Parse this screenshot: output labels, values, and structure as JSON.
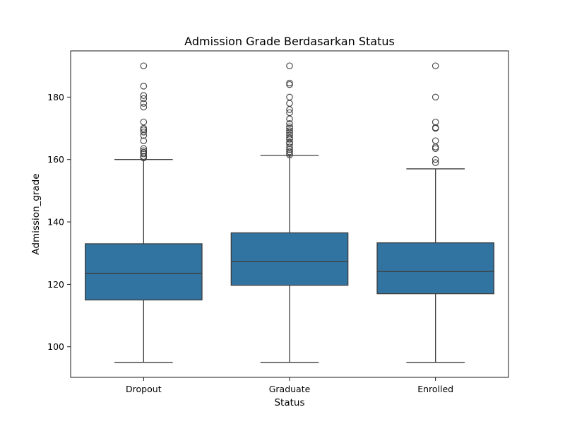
{
  "chart_data": {
    "type": "box",
    "title": "Admission Grade Berdasarkan Status",
    "xlabel": "Status",
    "ylabel": "Admission_grade",
    "categories": [
      "Dropout",
      "Graduate",
      "Enrolled"
    ],
    "ylim": [
      90.2,
      194.8
    ],
    "yticks": [
      100,
      120,
      140,
      160,
      180
    ],
    "grid": false,
    "box_color": "#3274a1",
    "line_color": "#3d3d3d",
    "boxes": [
      {
        "category": "Dropout",
        "whisker_low": 95.0,
        "q1": 115.0,
        "median": 123.5,
        "q3": 133.0,
        "whisker_high": 160.0,
        "outliers": [
          160.5,
          161.0,
          161.8,
          162.3,
          162.8,
          163.5,
          166.0,
          167.7,
          168.8,
          169.5,
          170.0,
          172.0,
          176.8,
          178.0,
          179.5,
          180.5,
          183.5,
          190.0
        ]
      },
      {
        "category": "Graduate",
        "whisker_low": 95.0,
        "q1": 119.7,
        "median": 127.3,
        "q3": 136.5,
        "whisker_high": 161.3,
        "outliers": [
          161.5,
          162.0,
          162.5,
          163.2,
          164.0,
          165.0,
          165.5,
          166.5,
          167.0,
          167.8,
          168.5,
          169.2,
          170.0,
          170.5,
          171.5,
          173.0,
          175.0,
          176.0,
          178.0,
          180.0,
          184.0,
          184.5,
          190.0
        ]
      },
      {
        "category": "Enrolled",
        "whisker_low": 95.0,
        "q1": 117.0,
        "median": 124.1,
        "q3": 133.3,
        "whisker_high": 157.0,
        "outliers": [
          159.0,
          160.0,
          163.5,
          164.0,
          166.0,
          170.0,
          170.2,
          172.0,
          180.0,
          190.0
        ]
      }
    ]
  }
}
